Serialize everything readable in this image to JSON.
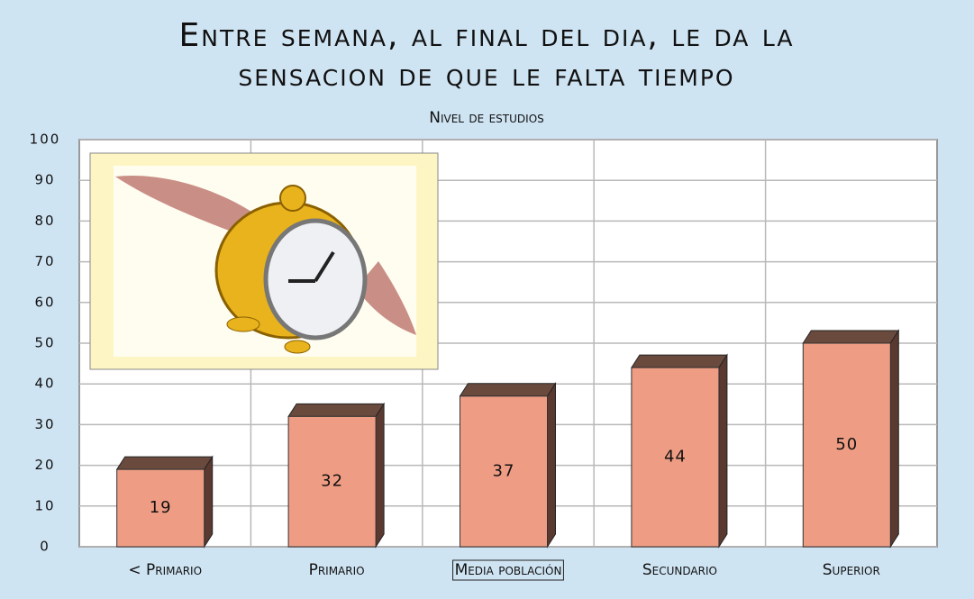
{
  "chart_data": {
    "type": "bar",
    "title": "Entre semana, al final del dia, le da la sensacion de que le falta tiempo",
    "subtitle": "Nivel de estudios",
    "categories": [
      "< Primario",
      "Primario",
      "Media población",
      "Secundario",
      "Superior"
    ],
    "values": [
      19,
      32,
      37,
      44,
      50
    ],
    "color": "#ee9d84",
    "ylim": [
      0,
      100
    ],
    "yticks": [
      0,
      10,
      20,
      30,
      40,
      50,
      60,
      70,
      80,
      90,
      100
    ],
    "grid": true
  }
}
